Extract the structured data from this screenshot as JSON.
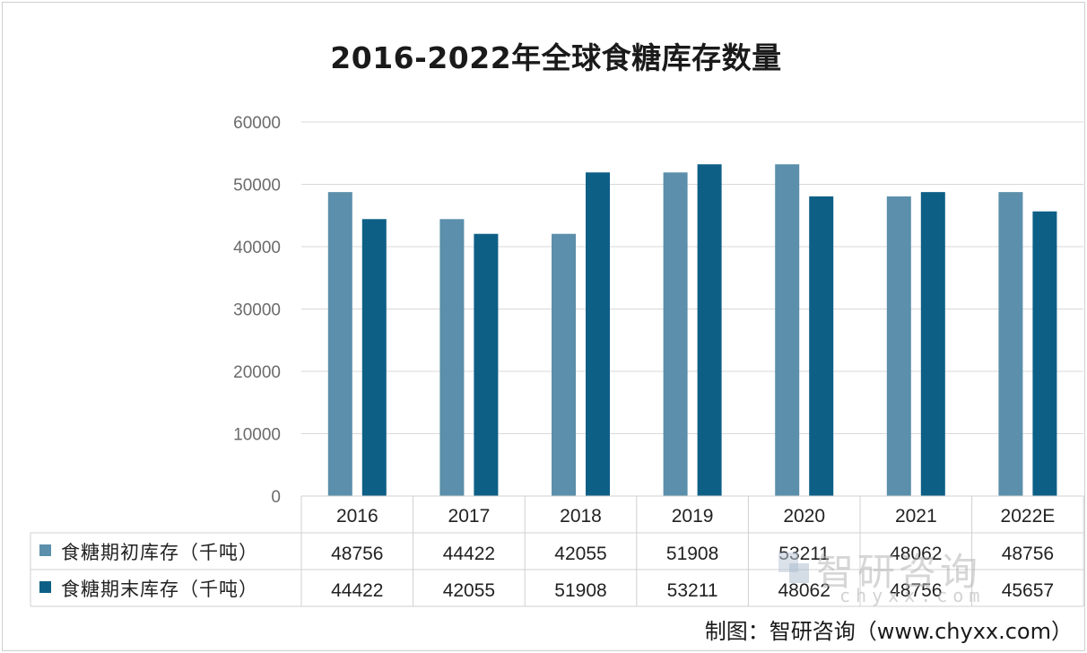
{
  "chart_data": {
    "type": "bar",
    "title": "2016-2022年全球食糖库存数量",
    "categories": [
      "2016",
      "2017",
      "2018",
      "2019",
      "2020",
      "2021",
      "2022E"
    ],
    "series": [
      {
        "name": "食糖期初库存（千吨）",
        "color": "#5b8fab",
        "values": [
          48756,
          44422,
          42055,
          51908,
          53211,
          48062,
          48756
        ]
      },
      {
        "name": "食糖期末库存（千吨）",
        "color": "#0d5f86",
        "values": [
          44422,
          42055,
          51908,
          53211,
          48062,
          48756,
          45657
        ]
      }
    ],
    "ylim": [
      0,
      60000
    ],
    "yticks": [
      "0",
      "10000",
      "20000",
      "30000",
      "40000",
      "50000",
      "60000"
    ],
    "grid": true,
    "legend": "data-table",
    "data_table": true
  },
  "watermark": {
    "text": "智研咨询",
    "sub": "chyxx.com"
  },
  "credit": "制图：智研咨询（www.chyxx.com）"
}
